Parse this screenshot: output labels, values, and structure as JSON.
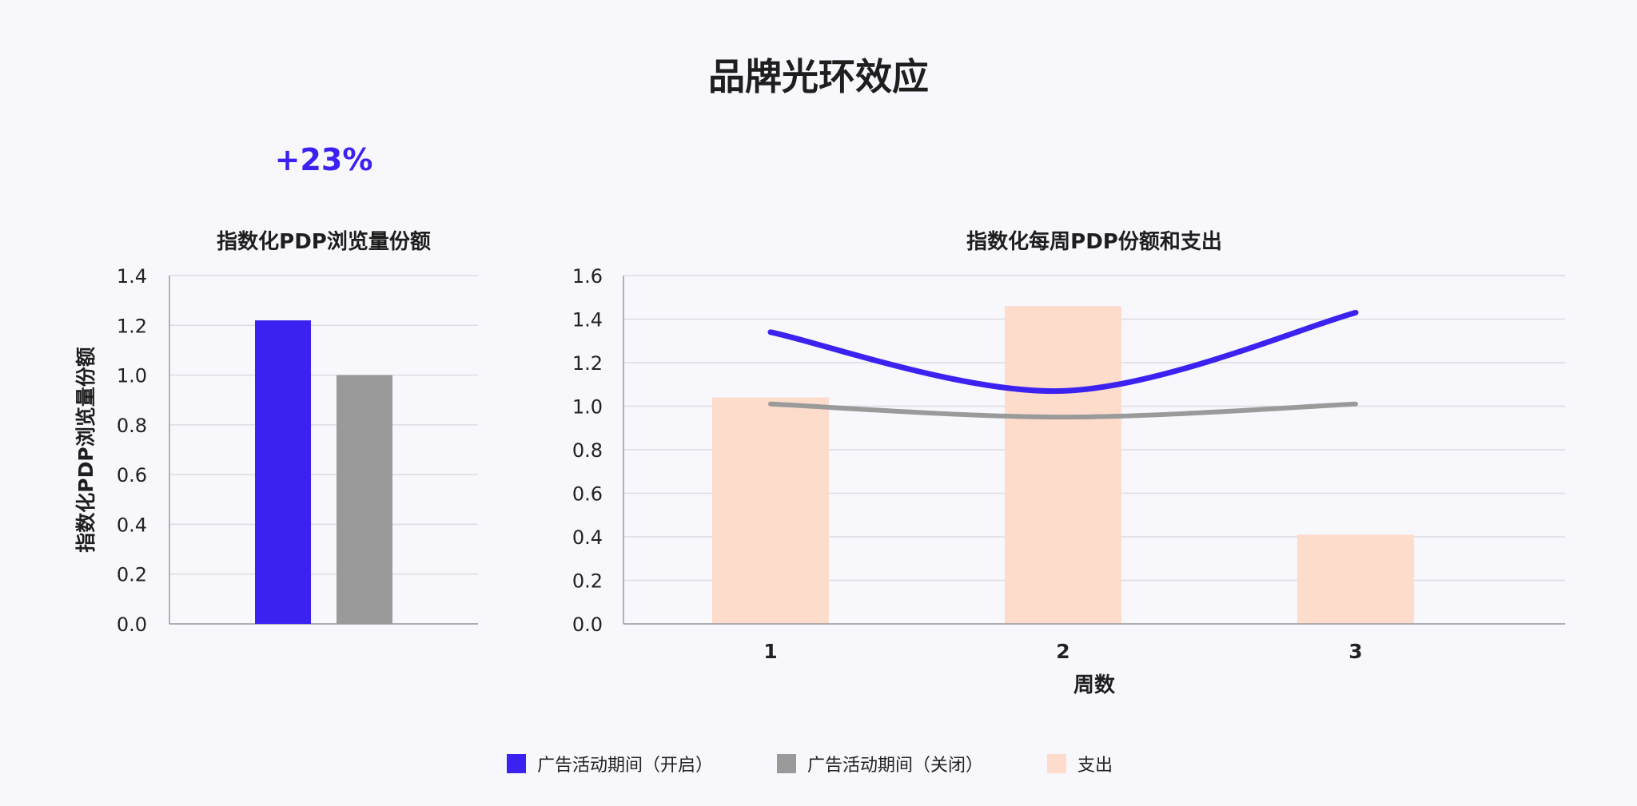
{
  "page": {
    "title": "品牌光环效应",
    "callout": "+23%"
  },
  "colors": {
    "campaign_on": "#3b22f0",
    "campaign_off": "#9a9a9a",
    "spend": "#fedccc",
    "grid": "#dcdce2",
    "axis": "#9a9aa2"
  },
  "legend": [
    {
      "label": "广告活动期间（开启）",
      "color": "#3b22f0"
    },
    {
      "label": "广告活动期间（关闭）",
      "color": "#9a9a9a"
    },
    {
      "label": "支出",
      "color": "#fedccc"
    }
  ],
  "chart_data": [
    {
      "type": "bar",
      "title": "指数化PDP浏览量份额",
      "ylabel": "指数化PDP浏览量份额",
      "xlabel": "",
      "ylim": [
        0,
        1.4
      ],
      "yticks": [
        "0.0",
        "0.2",
        "0.4",
        "0.6",
        "0.8",
        "1.0",
        "1.2",
        "1.4"
      ],
      "grid": true,
      "series": [
        {
          "name": "广告活动期间（开启）",
          "values": [
            1.22
          ]
        },
        {
          "name": "广告活动期间（关闭）",
          "values": [
            1.0
          ]
        }
      ]
    },
    {
      "type": "line",
      "title": "指数化每周PDP份额和支出",
      "xlabel": "周数",
      "ylabel": "",
      "categories": [
        "1",
        "2",
        "3"
      ],
      "ylim": [
        0,
        1.6
      ],
      "yticks": [
        "0.0",
        "0.2",
        "0.4",
        "0.6",
        "0.8",
        "1.0",
        "1.2",
        "1.4",
        "1.6"
      ],
      "grid": true,
      "series": [
        {
          "name": "支出",
          "kind": "bar",
          "values": [
            1.04,
            1.46,
            0.41
          ]
        },
        {
          "name": "广告活动期间（开启）",
          "kind": "line",
          "values": [
            1.34,
            1.07,
            1.43
          ]
        },
        {
          "name": "广告活动期间（关闭）",
          "kind": "line",
          "values": [
            1.01,
            0.95,
            1.01
          ]
        }
      ],
      "legend_position": "bottom"
    }
  ]
}
